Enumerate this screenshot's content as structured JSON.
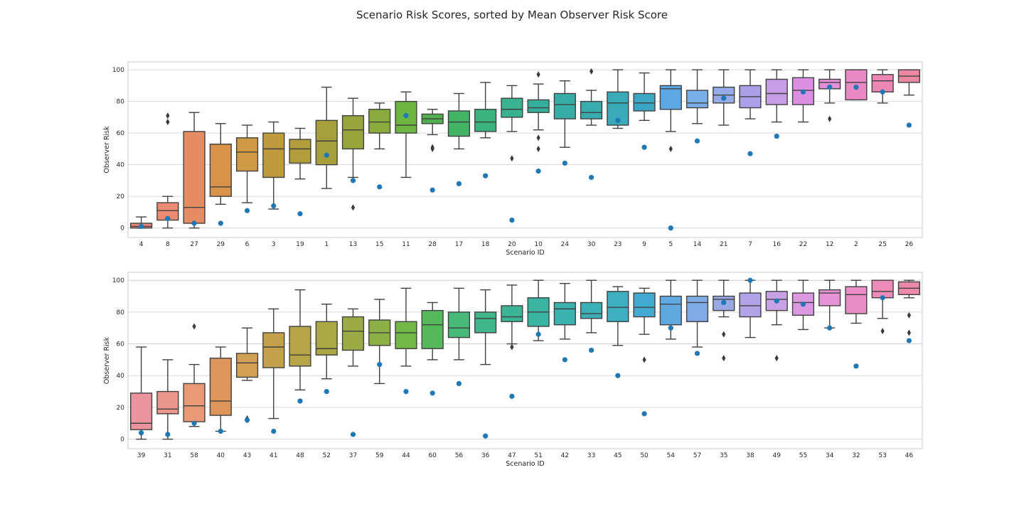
{
  "title": "Scenario Risk Scores, sorted by Mean Observer Risk Score",
  "chart_data": [
    {
      "type": "box",
      "xlabel": "Scenario ID",
      "ylabel": "Observer Risk",
      "ylim": [
        -6,
        105
      ],
      "yticks": [
        0,
        20,
        40,
        60,
        80,
        100
      ],
      "grid": true,
      "categories": [
        "4",
        "8",
        "27",
        "29",
        "6",
        "3",
        "19",
        "1",
        "13",
        "15",
        "11",
        "28",
        "17",
        "18",
        "20",
        "10",
        "24",
        "30",
        "23",
        "9",
        "5",
        "14",
        "21",
        "7",
        "16",
        "22",
        "12",
        "2",
        "25",
        "26"
      ],
      "boxes": [
        {
          "id": "4",
          "q1": 0,
          "median": 1,
          "q3": 3,
          "whisker_low": 0,
          "whisker_high": 7,
          "outliers": [],
          "point": 1,
          "color": "#e8867a"
        },
        {
          "id": "8",
          "q1": 5,
          "median": 11,
          "q3": 16,
          "whisker_low": 0,
          "whisker_high": 20,
          "outliers": [
            67,
            71
          ],
          "point": 6,
          "color": "#ea8b72"
        },
        {
          "id": "27",
          "q1": 3,
          "median": 13,
          "q3": 61,
          "whisker_low": 0,
          "whisker_high": 73,
          "outliers": [],
          "point": 3,
          "color": "#e58c62"
        },
        {
          "id": "29",
          "q1": 20,
          "median": 26,
          "q3": 53,
          "whisker_low": 15,
          "whisker_high": 66,
          "outliers": [],
          "point": 3,
          "color": "#d8924a"
        },
        {
          "id": "6",
          "q1": 36,
          "median": 48,
          "q3": 57,
          "whisker_low": 16,
          "whisker_high": 65,
          "outliers": [],
          "point": 11,
          "color": "#cf9a45"
        },
        {
          "id": "3",
          "q1": 32,
          "median": 50,
          "q3": 60,
          "whisker_low": 12,
          "whisker_high": 67,
          "outliers": [],
          "point": 14,
          "color": "#c09b3e"
        },
        {
          "id": "19",
          "q1": 41,
          "median": 50,
          "q3": 56,
          "whisker_low": 31,
          "whisker_high": 63,
          "outliers": [],
          "point": 9,
          "color": "#b29d3b"
        },
        {
          "id": "1",
          "q1": 40,
          "median": 55,
          "q3": 68,
          "whisker_low": 25,
          "whisker_high": 89,
          "outliers": [],
          "point": 46,
          "color": "#a79f3b"
        },
        {
          "id": "13",
          "q1": 50,
          "median": 62,
          "q3": 71,
          "whisker_low": 32,
          "whisker_high": 82,
          "outliers": [
            13
          ],
          "point": 30,
          "color": "#98a43c"
        },
        {
          "id": "15",
          "q1": 60,
          "median": 67,
          "q3": 75,
          "whisker_low": 50,
          "whisker_high": 79,
          "outliers": [],
          "point": 26,
          "color": "#8aac3e"
        },
        {
          "id": "11",
          "q1": 60,
          "median": 65,
          "q3": 80,
          "whisker_low": 32,
          "whisker_high": 86,
          "outliers": [],
          "point": 71,
          "color": "#6cb540"
        },
        {
          "id": "28",
          "q1": 66,
          "median": 69,
          "q3": 72,
          "whisker_low": 59,
          "whisker_high": 75,
          "outliers": [
            50,
            51
          ],
          "point": 24,
          "color": "#52b14e"
        },
        {
          "id": "17",
          "q1": 58,
          "median": 67,
          "q3": 74,
          "whisker_low": 50,
          "whisker_high": 85,
          "outliers": [],
          "point": 28,
          "color": "#43b466"
        },
        {
          "id": "18",
          "q1": 61,
          "median": 67,
          "q3": 75,
          "whisker_low": 57,
          "whisker_high": 92,
          "outliers": [],
          "point": 33,
          "color": "#3ab47e"
        },
        {
          "id": "20",
          "q1": 70,
          "median": 75,
          "q3": 82,
          "whisker_low": 61,
          "whisker_high": 90,
          "outliers": [
            44
          ],
          "point": 5,
          "color": "#39b28f"
        },
        {
          "id": "10",
          "q1": 73,
          "median": 76,
          "q3": 81,
          "whisker_low": 62,
          "whisker_high": 91,
          "outliers": [
            97,
            57,
            50
          ],
          "point": 36,
          "color": "#37b09b"
        },
        {
          "id": "24",
          "q1": 69,
          "median": 78,
          "q3": 85,
          "whisker_low": 51,
          "whisker_high": 93,
          "outliers": [],
          "point": 41,
          "color": "#36ada5"
        },
        {
          "id": "30",
          "q1": 69,
          "median": 73,
          "q3": 80,
          "whisker_low": 65,
          "whisker_high": 87,
          "outliers": [
            99
          ],
          "point": 32,
          "color": "#38acae"
        },
        {
          "id": "23",
          "q1": 65,
          "median": 79,
          "q3": 86,
          "whisker_low": 63,
          "whisker_high": 100,
          "outliers": [],
          "point": 68,
          "color": "#38aab8"
        },
        {
          "id": "9",
          "q1": 74,
          "median": 79,
          "q3": 85,
          "whisker_low": 68,
          "whisker_high": 98,
          "outliers": [],
          "point": 51,
          "color": "#3aa8c5"
        },
        {
          "id": "5",
          "q1": 75,
          "median": 88,
          "q3": 90,
          "whisker_low": 61,
          "whisker_high": 100,
          "outliers": [
            50
          ],
          "point": 0,
          "color": "#5aa9e6"
        },
        {
          "id": "14",
          "q1": 76,
          "median": 79,
          "q3": 87,
          "whisker_low": 66,
          "whisker_high": 100,
          "outliers": [],
          "point": 55,
          "color": "#7aaee8"
        },
        {
          "id": "21",
          "q1": 79,
          "median": 84,
          "q3": 89,
          "whisker_low": 65,
          "whisker_high": 100,
          "outliers": [],
          "point": 82,
          "color": "#97abe9"
        },
        {
          "id": "7",
          "q1": 76,
          "median": 83,
          "q3": 90,
          "whisker_low": 69,
          "whisker_high": 100,
          "outliers": [],
          "point": 47,
          "color": "#ad9ee8"
        },
        {
          "id": "16",
          "q1": 78,
          "median": 85,
          "q3": 94,
          "whisker_low": 67,
          "whisker_high": 100,
          "outliers": [],
          "point": 58,
          "color": "#c79de8"
        },
        {
          "id": "22",
          "q1": 78,
          "median": 87,
          "q3": 95,
          "whisker_low": 67,
          "whisker_high": 100,
          "outliers": [],
          "point": 86,
          "color": "#dc8fe2"
        },
        {
          "id": "12",
          "q1": 88,
          "median": 92,
          "q3": 94,
          "whisker_low": 79,
          "whisker_high": 100,
          "outliers": [
            69
          ],
          "point": 89,
          "color": "#e38ed6"
        },
        {
          "id": "2",
          "q1": 81,
          "median": 92,
          "q3": 100,
          "whisker_low": 81,
          "whisker_high": 100,
          "outliers": [],
          "point": 89,
          "color": "#ea88c5"
        },
        {
          "id": "25",
          "q1": 86,
          "median": 93,
          "q3": 97,
          "whisker_low": 79,
          "whisker_high": 100,
          "outliers": [],
          "point": 86,
          "color": "#ec87b4"
        },
        {
          "id": "26",
          "q1": 92,
          "median": 96,
          "q3": 100,
          "whisker_low": 84,
          "whisker_high": 100,
          "outliers": [],
          "point": 65,
          "color": "#ec87a1"
        }
      ]
    },
    {
      "type": "box",
      "xlabel": "Scenario ID",
      "ylabel": "Observer Risk",
      "ylim": [
        -6,
        105
      ],
      "yticks": [
        0,
        20,
        40,
        60,
        80,
        100
      ],
      "grid": true,
      "categories": [
        "39",
        "31",
        "58",
        "40",
        "43",
        "41",
        "48",
        "52",
        "37",
        "59",
        "44",
        "60",
        "56",
        "36",
        "47",
        "51",
        "42",
        "33",
        "45",
        "50",
        "54",
        "57",
        "35",
        "38",
        "49",
        "55",
        "34",
        "32",
        "53",
        "46"
      ],
      "boxes": [
        {
          "id": "39",
          "q1": 6,
          "median": 10,
          "q3": 29,
          "whisker_low": 0,
          "whisker_high": 58,
          "outliers": [],
          "point": 4,
          "color": "#eb939f"
        },
        {
          "id": "31",
          "q1": 16,
          "median": 19,
          "q3": 30,
          "whisker_low": 0,
          "whisker_high": 50,
          "outliers": [],
          "point": 3,
          "color": "#eb968c"
        },
        {
          "id": "58",
          "q1": 11,
          "median": 21,
          "q3": 35,
          "whisker_low": 8,
          "whisker_high": 47,
          "outliers": [
            71
          ],
          "point": 10,
          "color": "#eb9876"
        },
        {
          "id": "40",
          "q1": 15,
          "median": 24,
          "q3": 51,
          "whisker_low": 5,
          "whisker_high": 58,
          "outliers": [],
          "point": 5,
          "color": "#dd955a"
        },
        {
          "id": "43",
          "q1": 39,
          "median": 48,
          "q3": 54,
          "whisker_low": 37,
          "whisker_high": 70,
          "outliers": [
            13,
            12
          ],
          "point": 12,
          "color": "#d2a055"
        },
        {
          "id": "41",
          "q1": 45,
          "median": 58,
          "q3": 67,
          "whisker_low": 13,
          "whisker_high": 82,
          "outliers": [],
          "point": 5,
          "color": "#c3a14c"
        },
        {
          "id": "48",
          "q1": 46,
          "median": 53,
          "q3": 71,
          "whisker_low": 31,
          "whisker_high": 94,
          "outliers": [],
          "point": 24,
          "color": "#b5a448"
        },
        {
          "id": "52",
          "q1": 53,
          "median": 57,
          "q3": 74,
          "whisker_low": 38,
          "whisker_high": 85,
          "outliers": [],
          "point": 30,
          "color": "#a9a845"
        },
        {
          "id": "37",
          "q1": 56,
          "median": 68,
          "q3": 77,
          "whisker_low": 46,
          "whisker_high": 82,
          "outliers": [],
          "point": 3,
          "color": "#9cab45"
        },
        {
          "id": "59",
          "q1": 59,
          "median": 67,
          "q3": 75,
          "whisker_low": 35,
          "whisker_high": 88,
          "outliers": [],
          "point": 47,
          "color": "#8db046"
        },
        {
          "id": "44",
          "q1": 57,
          "median": 67,
          "q3": 74,
          "whisker_low": 46,
          "whisker_high": 95,
          "outliers": [],
          "point": 30,
          "color": "#72b847"
        },
        {
          "id": "60",
          "q1": 57,
          "median": 72,
          "q3": 81,
          "whisker_low": 50,
          "whisker_high": 86,
          "outliers": [],
          "point": 29,
          "color": "#55b85b"
        },
        {
          "id": "56",
          "q1": 64,
          "median": 70,
          "q3": 80,
          "whisker_low": 50,
          "whisker_high": 95,
          "outliers": [],
          "point": 35,
          "color": "#46b877"
        },
        {
          "id": "36",
          "q1": 67,
          "median": 76,
          "q3": 80,
          "whisker_low": 47,
          "whisker_high": 94,
          "outliers": [],
          "point": 2,
          "color": "#40b78a"
        },
        {
          "id": "47",
          "q1": 74,
          "median": 77,
          "q3": 84,
          "whisker_low": 60,
          "whisker_high": 97,
          "outliers": [
            58
          ],
          "point": 27,
          "color": "#3cb596"
        },
        {
          "id": "51",
          "q1": 71,
          "median": 80,
          "q3": 89,
          "whisker_low": 62,
          "whisker_high": 100,
          "outliers": [],
          "point": 66,
          "color": "#3ab4a3"
        },
        {
          "id": "42",
          "q1": 72,
          "median": 82,
          "q3": 86,
          "whisker_low": 63,
          "whisker_high": 98,
          "outliers": [],
          "point": 50,
          "color": "#3ab2ad"
        },
        {
          "id": "33",
          "q1": 76,
          "median": 79,
          "q3": 86,
          "whisker_low": 67,
          "whisker_high": 100,
          "outliers": [],
          "point": 56,
          "color": "#3cb0b7"
        },
        {
          "id": "45",
          "q1": 74,
          "median": 83,
          "q3": 93,
          "whisker_low": 59,
          "whisker_high": 96,
          "outliers": [],
          "point": 40,
          "color": "#3eaec1"
        },
        {
          "id": "50",
          "q1": 77,
          "median": 83,
          "q3": 92,
          "whisker_low": 66,
          "whisker_high": 95,
          "outliers": [
            50
          ],
          "point": 16,
          "color": "#42aad0"
        },
        {
          "id": "54",
          "q1": 72,
          "median": 85,
          "q3": 90,
          "whisker_low": 63,
          "whisker_high": 100,
          "outliers": [],
          "point": 70,
          "color": "#60a9e0"
        },
        {
          "id": "57",
          "q1": 74,
          "median": 86,
          "q3": 90,
          "whisker_low": 58,
          "whisker_high": 100,
          "outliers": [],
          "point": 54,
          "color": "#7fabe4"
        },
        {
          "id": "35",
          "q1": 81,
          "median": 88,
          "q3": 90,
          "whisker_low": 77,
          "whisker_high": 100,
          "outliers": [
            66,
            51
          ],
          "point": 86,
          "color": "#99a9e6"
        },
        {
          "id": "38",
          "q1": 77,
          "median": 84,
          "q3": 92,
          "whisker_low": 64,
          "whisker_high": 100,
          "outliers": [],
          "point": 100,
          "color": "#b1a3e6"
        },
        {
          "id": "49",
          "q1": 81,
          "median": 88,
          "q3": 93,
          "whisker_low": 72,
          "whisker_high": 100,
          "outliers": [
            51
          ],
          "point": 87,
          "color": "#c8a1e6"
        },
        {
          "id": "55",
          "q1": 78,
          "median": 86,
          "q3": 92,
          "whisker_low": 69,
          "whisker_high": 100,
          "outliers": [],
          "point": 85,
          "color": "#dc98e1"
        },
        {
          "id": "34",
          "q1": 84,
          "median": 92,
          "q3": 94,
          "whisker_low": 70,
          "whisker_high": 100,
          "outliers": [],
          "point": 70,
          "color": "#e592d6"
        },
        {
          "id": "32",
          "q1": 79,
          "median": 91,
          "q3": 96,
          "whisker_low": 73,
          "whisker_high": 100,
          "outliers": [],
          "point": 46,
          "color": "#ea8dc7"
        },
        {
          "id": "53",
          "q1": 89,
          "median": 93,
          "q3": 100,
          "whisker_low": 76,
          "whisker_high": 100,
          "outliers": [
            68
          ],
          "point": 89,
          "color": "#ec8ab8"
        },
        {
          "id": "46",
          "q1": 91,
          "median": 95,
          "q3": 99,
          "whisker_low": 89,
          "whisker_high": 100,
          "outliers": [
            78,
            67
          ],
          "point": 62,
          "color": "#ec89a8"
        }
      ]
    }
  ],
  "point_color": "#1f77b4",
  "line_color": "#404040",
  "grid_color": "#cccccc",
  "spine_color": "#c8c8c8"
}
